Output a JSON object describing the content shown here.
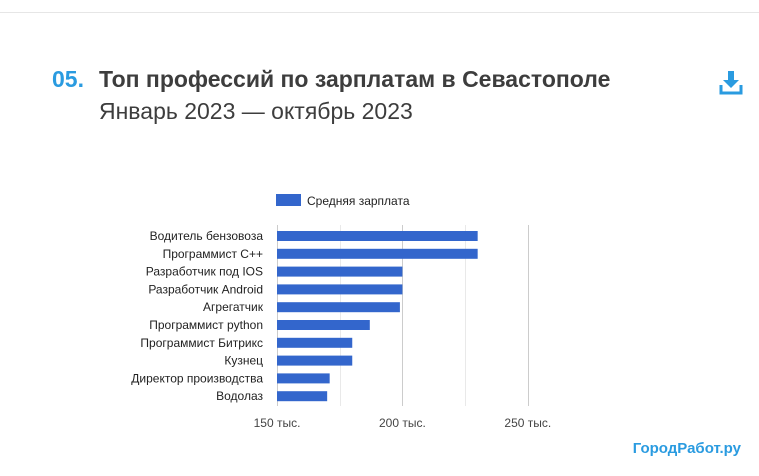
{
  "header": {
    "number": "05.",
    "title": "Топ профессий по зарплатам в Севастополе",
    "subtitle": "Январь 2023 — октябрь 2023"
  },
  "brand": "ГородРабот.ру",
  "icons": {
    "download": "download-icon"
  },
  "colors": {
    "bar": "#3366cc",
    "accent": "#2a9be0",
    "grid": "#cccccc",
    "text": "#222222"
  },
  "chart_data": {
    "type": "bar",
    "orientation": "horizontal",
    "categories": [
      "Водитель бензовоза",
      "Программист C++",
      "Разработчик под IOS",
      "Разработчик Android",
      "Агрегатчик",
      "Программист python",
      "Программист Битрикс",
      "Кузнец",
      "Директор производства",
      "Водолаз"
    ],
    "series": [
      {
        "name": "Средняя зарплата",
        "values": [
          230000,
          230000,
          200000,
          200000,
          199000,
          187000,
          180000,
          180000,
          171000,
          170000
        ]
      }
    ],
    "xlim": [
      150000,
      270000
    ],
    "xticks": [
      150000,
      200000,
      250000
    ],
    "xtick_labels": [
      "150 тыс.",
      "200 тыс.",
      "250 тыс."
    ],
    "grid": true,
    "legend_position": "top"
  }
}
